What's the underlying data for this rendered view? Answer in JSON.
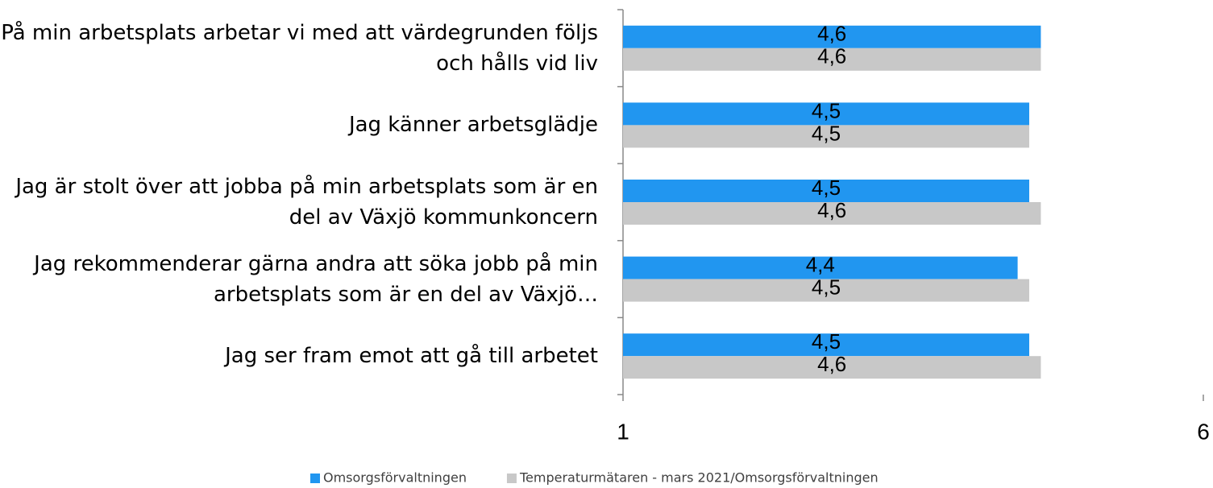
{
  "chart_data": {
    "type": "hbar",
    "categories": [
      "På min arbetsplats arbetar vi med att värdegrunden följs och hålls vid liv",
      "Jag känner arbetsglädje",
      "Jag är stolt över att jobba på min arbetsplats som är en del av Växjö kommunkoncern",
      "Jag rekommenderar gärna andra att söka jobb på min arbetsplats som är en del av Växjö…",
      "Jag ser fram emot att gå till arbetet"
    ],
    "series": [
      {
        "name": "Omsorgsförvaltningen",
        "color": "#2196f0",
        "values": [
          4.6,
          4.5,
          4.5,
          4.4,
          4.5
        ],
        "value_labels": [
          "4,6",
          "4,5",
          "4,5",
          "4,4",
          "4,5"
        ]
      },
      {
        "name": "Temperaturmätaren - mars 2021/Omsorgsförvaltningen",
        "color": "#c8c8c8",
        "values": [
          4.6,
          4.5,
          4.6,
          4.5,
          4.6
        ],
        "value_labels": [
          "4,6",
          "4,5",
          "4,6",
          "4,5",
          "4,6"
        ]
      }
    ],
    "xlim": [
      1,
      6
    ],
    "xticks": [
      1,
      6
    ],
    "legend": "bottom"
  }
}
